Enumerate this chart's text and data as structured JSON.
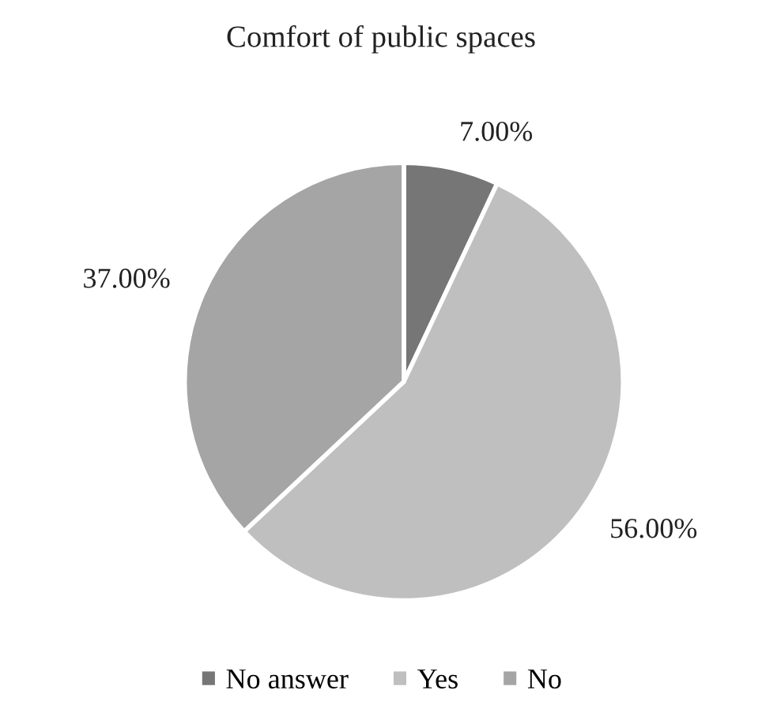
{
  "chart_data": {
    "type": "pie",
    "title": "Comfort of public spaces",
    "categories": [
      "No answer",
      "Yes",
      "No"
    ],
    "values": [
      7,
      56,
      37
    ],
    "value_labels": [
      "7.00%",
      "56.00%",
      "37.00%"
    ],
    "colors": [
      "#767676",
      "#bfbfbf",
      "#a5a5a5"
    ],
    "legend": "bottom"
  }
}
